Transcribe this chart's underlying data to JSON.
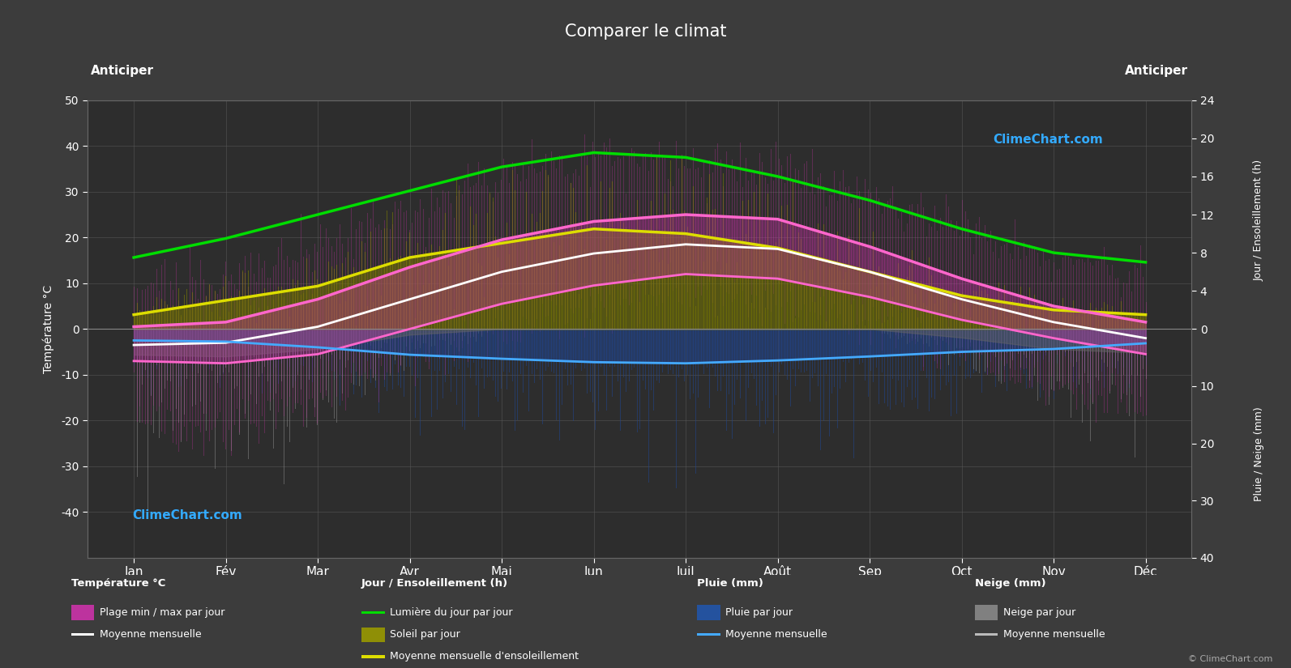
{
  "title": "Comparer le climat",
  "location": "Anticiper",
  "bg_color": "#3c3c3c",
  "plot_bg_color": "#2d2d2d",
  "months": [
    "Jan",
    "Fév",
    "Mar",
    "Avr",
    "Mai",
    "Jun",
    "Juil",
    "Août",
    "Sep",
    "Oct",
    "Nov",
    "Déc"
  ],
  "temp_ylim": [
    -50,
    50
  ],
  "temp_mean": [
    -3.5,
    -3.0,
    0.5,
    6.5,
    12.5,
    16.5,
    18.5,
    17.5,
    12.5,
    6.5,
    1.5,
    -2.0
  ],
  "temp_max_mean": [
    0.5,
    1.5,
    6.5,
    13.5,
    19.5,
    23.5,
    25.0,
    24.0,
    18.0,
    11.0,
    5.0,
    1.5
  ],
  "temp_min_mean": [
    -7.0,
    -7.5,
    -5.5,
    0.0,
    5.5,
    9.5,
    12.0,
    11.0,
    7.0,
    2.0,
    -2.0,
    -5.5
  ],
  "daylight_h": [
    7.5,
    9.5,
    12.0,
    14.5,
    17.0,
    18.5,
    18.0,
    16.0,
    13.5,
    10.5,
    8.0,
    7.0
  ],
  "sunshine_mean_h": [
    1.5,
    3.0,
    4.5,
    7.5,
    9.0,
    10.5,
    10.0,
    8.5,
    6.0,
    3.5,
    2.0,
    1.5
  ],
  "temp_abs_max": [
    10,
    12,
    18,
    26,
    34,
    37,
    36,
    35,
    29,
    22,
    14,
    11
  ],
  "temp_abs_min": [
    -20,
    -22,
    -15,
    -6,
    0,
    5,
    8,
    6,
    1,
    -5,
    -12,
    -18
  ],
  "rain_mean_mm": [
    2.0,
    2.2,
    3.2,
    4.5,
    5.2,
    5.8,
    6.0,
    5.5,
    4.8,
    4.0,
    3.5,
    2.5
  ],
  "snow_mean_mm": [
    4.5,
    4.8,
    3.5,
    1.0,
    0.0,
    0.0,
    0.0,
    0.0,
    0.0,
    1.5,
    3.5,
    4.2
  ],
  "rain_abs_max_mm": [
    12,
    10,
    14,
    18,
    22,
    25,
    28,
    25,
    22,
    18,
    15,
    12
  ],
  "snow_abs_max_mm": [
    35,
    32,
    25,
    8,
    0,
    0,
    0,
    0,
    0,
    8,
    20,
    30
  ],
  "grid_color": "#555555",
  "green_color": "#00dd00",
  "yellow_color": "#dddd00",
  "olive_color": "#999900",
  "pink_color": "#ff66cc",
  "white_color": "#ffffff",
  "cyan_color": "#44aaff",
  "blue_fill": "#2255aa",
  "gray_color": "#999999",
  "sun_scale": 2.0833,
  "precip_scale": 1.25,
  "right_sun_ticks": [
    0,
    4,
    8,
    12,
    16,
    20,
    24
  ],
  "right_sun_positions": [
    0,
    8.33,
    16.67,
    25.0,
    33.33,
    41.67,
    50.0
  ],
  "right_precip_ticks": [
    0,
    10,
    20,
    30,
    40
  ],
  "right_precip_positions": [
    0,
    -12.5,
    -25.0,
    -37.5,
    -50.0
  ]
}
